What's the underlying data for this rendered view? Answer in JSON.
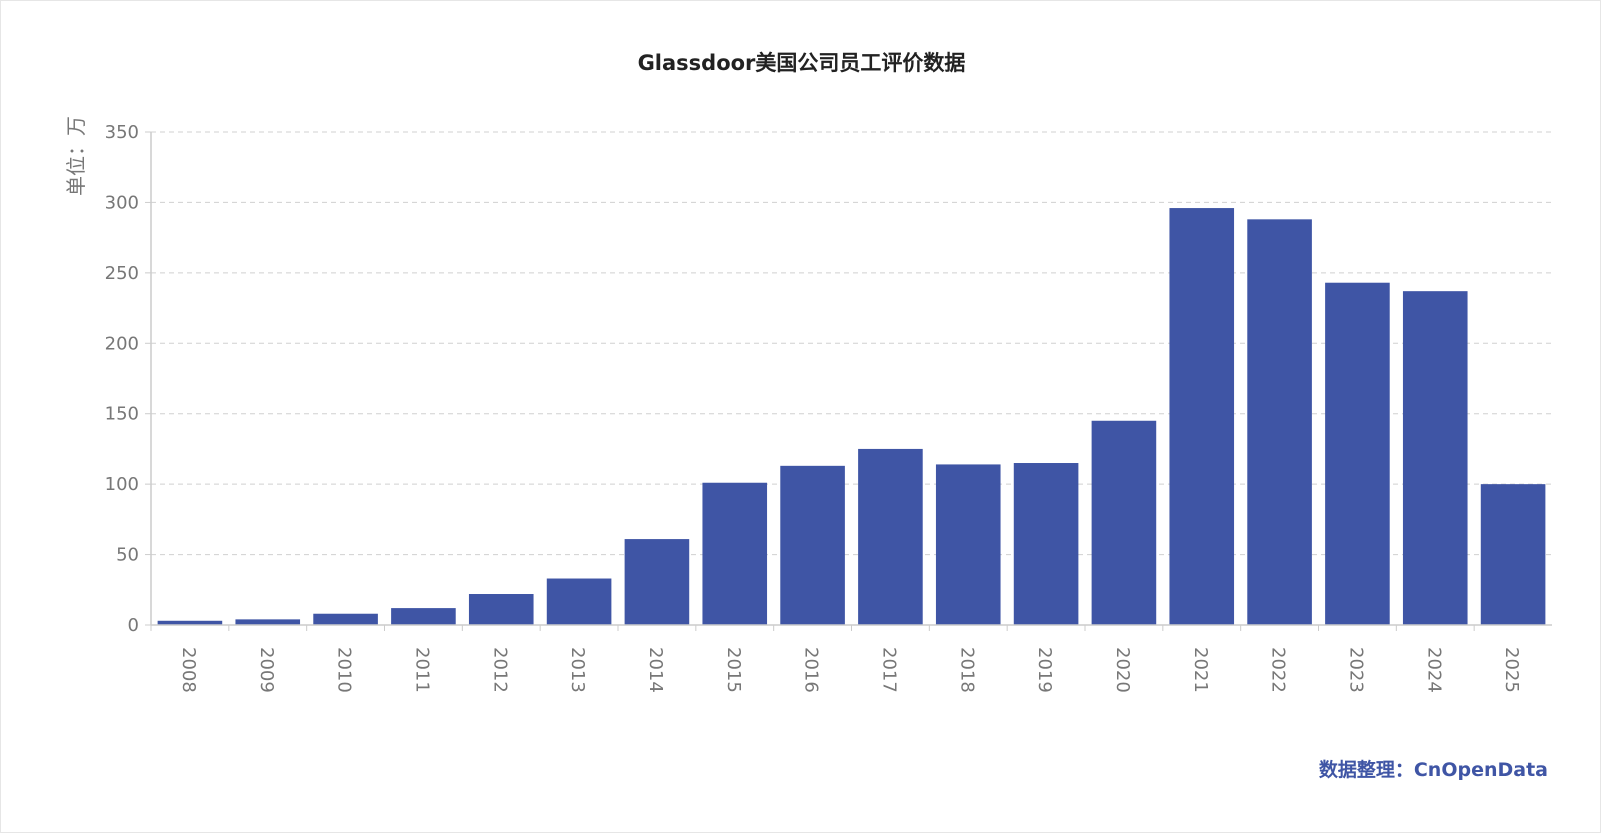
{
  "chart_data": {
    "type": "bar",
    "title": "Glassdoor美国公司员工评价数据",
    "ylabel": "单位：万",
    "xlabel": "",
    "categories": [
      "2008",
      "2009",
      "2010",
      "2011",
      "2012",
      "2013",
      "2014",
      "2015",
      "2016",
      "2017",
      "2018",
      "2019",
      "2020",
      "2021",
      "2022",
      "2023",
      "2024",
      "2025"
    ],
    "values": [
      3,
      4,
      8,
      12,
      22,
      33,
      61,
      101,
      113,
      125,
      114,
      115,
      145,
      296,
      288,
      243,
      237,
      100
    ],
    "ylim": [
      0,
      350
    ],
    "yticks": [
      0,
      50,
      100,
      150,
      200,
      250,
      300,
      350
    ],
    "bar_color": "#3F55A5",
    "grid": true
  },
  "source_label": "数据整理：CnOpenData"
}
